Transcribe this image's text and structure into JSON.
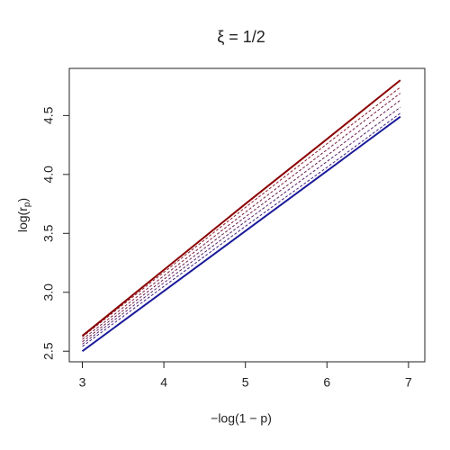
{
  "chart_data": {
    "type": "line",
    "title": "ξ = 1/2",
    "x_label": "−log(1 − p)",
    "y_label": [
      "log(r",
      "p",
      ")"
    ],
    "x": [
      3,
      4,
      5,
      6,
      6.9
    ],
    "series": [
      {
        "color": "#8b0000",
        "dash": false,
        "values": [
          2.63,
          3.19,
          3.75,
          4.3,
          4.8
        ]
      },
      {
        "color": "#8b1a2a",
        "dash": true,
        "values": [
          2.62,
          3.17,
          3.72,
          4.26,
          4.74
        ]
      },
      {
        "color": "#7a1f40",
        "dash": true,
        "values": [
          2.6,
          3.14,
          3.68,
          4.21,
          4.69
        ]
      },
      {
        "color": "#6a2050",
        "dash": true,
        "values": [
          2.58,
          3.11,
          3.64,
          4.16,
          4.63
        ]
      },
      {
        "color": "#55206a",
        "dash": true,
        "values": [
          2.56,
          3.08,
          3.6,
          4.11,
          4.57
        ]
      },
      {
        "color": "#40207f",
        "dash": true,
        "values": [
          2.54,
          3.05,
          3.56,
          4.06,
          4.52
        ]
      },
      {
        "color": "#1a1a9a",
        "dash": false,
        "values": [
          2.5,
          3.01,
          3.52,
          4.03,
          4.49
        ]
      }
    ],
    "xlim": [
      2.84,
      7.2
    ],
    "ylim": [
      2.41,
      4.9
    ],
    "xticks": [
      3,
      4,
      5,
      6,
      7
    ],
    "yticks": [
      {
        "value": 2.5,
        "label": "2.5"
      },
      {
        "value": 3,
        "label": "3.0"
      },
      {
        "value": 3.5,
        "label": "3.5"
      },
      {
        "value": 4,
        "label": "4.0"
      },
      {
        "value": 4.5,
        "label": "4.5"
      }
    ]
  }
}
